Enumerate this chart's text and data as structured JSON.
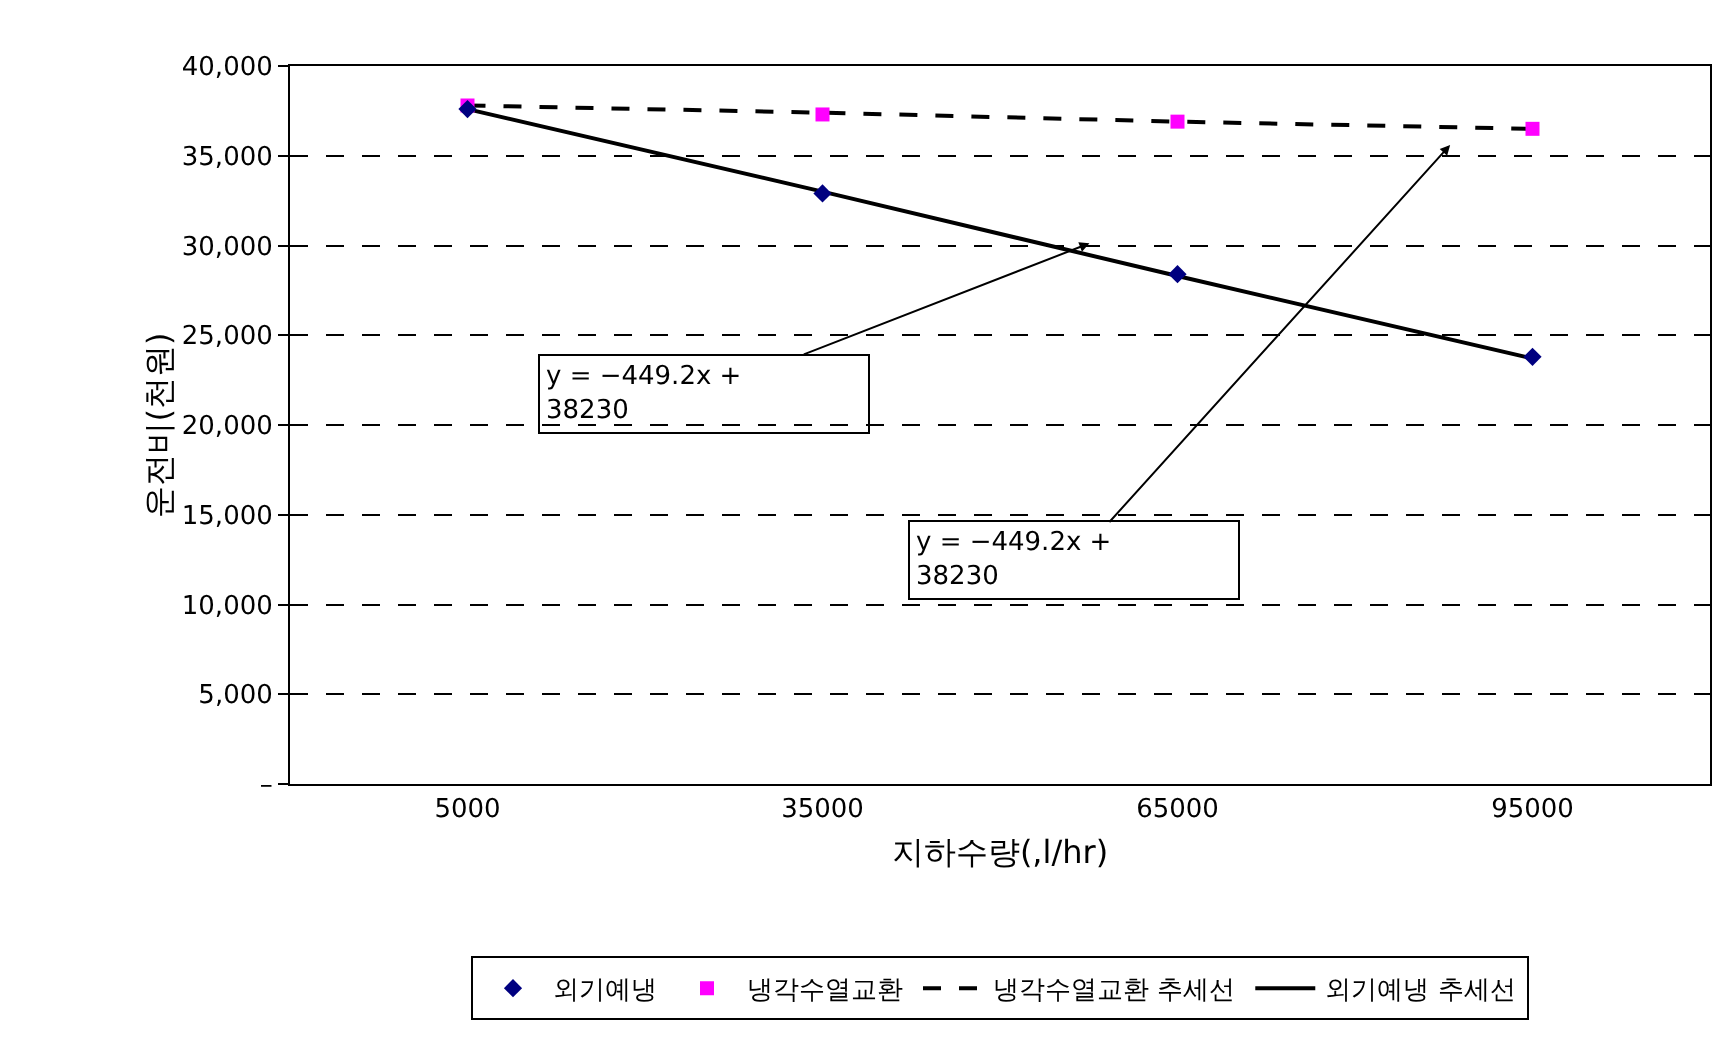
{
  "chart_data": {
    "type": "scatter",
    "xlabel": "지하수량(,l/hr)",
    "ylabel": "운전비(천원)",
    "categories": [
      "5000",
      "35000",
      "65000",
      "95000"
    ],
    "series": [
      {
        "name": "외기예냉",
        "marker": "diamond",
        "color": "#000080",
        "values": [
          37600,
          32900,
          28400,
          23800
        ]
      },
      {
        "name": "냉각수열교환",
        "marker": "square",
        "color": "#ff00ff",
        "values": [
          37800,
          37300,
          36900,
          36500
        ]
      },
      {
        "name": "냉각수열교환 추세선",
        "type": "line",
        "marker": "none",
        "line_style": "dashed",
        "color": "#000000",
        "values": [
          37800,
          37400,
          36900,
          36500
        ]
      },
      {
        "name": "외기예냉 추세선",
        "type": "line",
        "marker": "none",
        "line_style": "solid",
        "color": "#000000",
        "values": [
          37600,
          33000,
          28300,
          23700
        ]
      }
    ],
    "ylim": [
      0,
      40000
    ],
    "yticks": [
      {
        "value": 0,
        "label": "–"
      },
      {
        "value": 5000,
        "label": "5,000"
      },
      {
        "value": 10000,
        "label": "10,000"
      },
      {
        "value": 15000,
        "label": "15,000"
      },
      {
        "value": 20000,
        "label": "20,000"
      },
      {
        "value": 25000,
        "label": "25,000"
      },
      {
        "value": 30000,
        "label": "30,000"
      },
      {
        "value": 35000,
        "label": "35,000"
      },
      {
        "value": 40000,
        "label": "40,000"
      }
    ],
    "grid": "y",
    "legend": "bottom",
    "annotations": [
      "y = −449.2x +\n38230",
      "y = −449.2x +\n38230"
    ]
  }
}
